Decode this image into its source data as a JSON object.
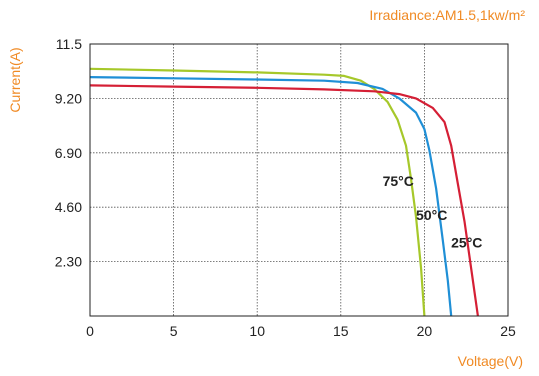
{
  "chart_data": {
    "type": "line",
    "title": "Irradiance:AM1.5,1kw/m²",
    "xlabel": "Voltage(V)",
    "ylabel": "Current(A)",
    "xlim": [
      0,
      25
    ],
    "ylim": [
      0,
      11.5
    ],
    "x_ticks": [
      "0",
      "5",
      "10",
      "15",
      "20",
      "25"
    ],
    "y_ticks": [
      "2.30",
      "4.60",
      "6.90",
      "9.20",
      "11.5"
    ],
    "grid": true,
    "accent_color": "#f08a24",
    "series": [
      {
        "name": "75°C",
        "color": "#a6c82a",
        "points": [
          [
            0,
            10.45
          ],
          [
            5,
            10.38
          ],
          [
            10,
            10.3
          ],
          [
            14,
            10.2
          ],
          [
            15.2,
            10.15
          ],
          [
            16.2,
            9.95
          ],
          [
            17.0,
            9.6
          ],
          [
            17.8,
            9.05
          ],
          [
            18.4,
            8.3
          ],
          [
            18.9,
            7.2
          ],
          [
            19.2,
            5.8
          ],
          [
            19.5,
            4.2
          ],
          [
            19.8,
            2.0
          ],
          [
            20.0,
            0.0
          ]
        ]
      },
      {
        "name": "50°C",
        "color": "#1f8fd6",
        "points": [
          [
            0,
            10.1
          ],
          [
            5,
            10.05
          ],
          [
            10,
            10.0
          ],
          [
            14,
            9.95
          ],
          [
            16,
            9.85
          ],
          [
            17.5,
            9.6
          ],
          [
            18.5,
            9.2
          ],
          [
            19.5,
            8.6
          ],
          [
            20,
            7.9
          ],
          [
            20.3,
            7.0
          ],
          [
            20.7,
            5.4
          ],
          [
            21.1,
            3.2
          ],
          [
            21.4,
            1.5
          ],
          [
            21.6,
            0.0
          ]
        ]
      },
      {
        "name": "25°C",
        "color": "#d51f35",
        "points": [
          [
            0,
            9.75
          ],
          [
            5,
            9.7
          ],
          [
            10,
            9.65
          ],
          [
            14,
            9.58
          ],
          [
            17,
            9.5
          ],
          [
            18.5,
            9.38
          ],
          [
            19.5,
            9.2
          ],
          [
            20.5,
            8.8
          ],
          [
            21.2,
            8.2
          ],
          [
            21.6,
            7.2
          ],
          [
            22.0,
            5.6
          ],
          [
            22.4,
            4.0
          ],
          [
            22.8,
            2.0
          ],
          [
            23.2,
            0.0
          ]
        ]
      }
    ],
    "labels": [
      {
        "text": "75°C",
        "x": 17.5,
        "y": 5.5
      },
      {
        "text": "50°C",
        "x": 19.5,
        "y": 4.05
      },
      {
        "text": "25°C",
        "x": 21.6,
        "y": 2.9
      }
    ]
  }
}
